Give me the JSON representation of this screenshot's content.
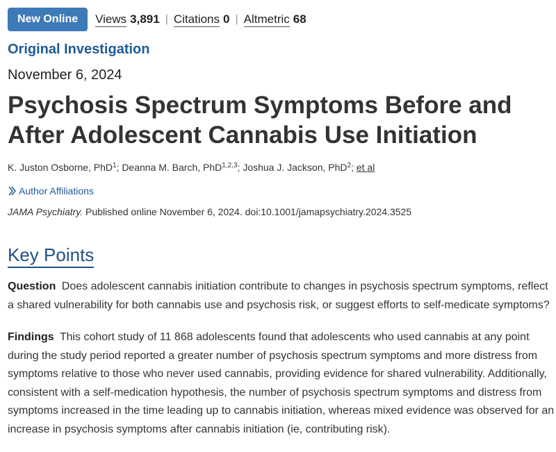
{
  "topbar": {
    "badge": "New Online",
    "views_label": "Views",
    "views_value": "3,891",
    "citations_label": "Citations",
    "citations_value": "0",
    "altmetric_label": "Altmetric",
    "altmetric_value": "68",
    "separator": "|"
  },
  "article": {
    "type": "Original Investigation",
    "date": "November 6, 2024",
    "title": "Psychosis Spectrum Symptoms Before and After Adolescent Cannabis Use Initiation",
    "authors": [
      {
        "name": "K. Juston Osborne, PhD",
        "sup": "1",
        "sep": "; "
      },
      {
        "name": "Deanna M. Barch, PhD",
        "sup": "1,2,3",
        "sep": "; "
      },
      {
        "name": "Joshua J. Jackson, PhD",
        "sup": "2",
        "sep": "; "
      }
    ],
    "et_al": "et al",
    "affiliations_label": "Author Affiliations",
    "citation_journal": "JAMA Psychiatry.",
    "citation_rest": " Published online November 6, 2024. doi:10.1001/jamapsychiatry.2024.3525"
  },
  "key_points": {
    "heading": "Key Points",
    "question_label": "Question",
    "question_text": "Does adolescent cannabis initiation contribute to changes in psychosis spectrum symptoms, reflect a shared vulnerability for both cannabis use and psychosis risk, or suggest efforts to self-medicate symptoms?",
    "findings_label": "Findings",
    "findings_text": "This cohort study of 11 868 adolescents found that adolescents who used cannabis at any point during the study period reported a greater number of psychosis spectrum symptoms and more distress from symptoms relative to those who never used cannabis, providing evidence for shared vulnerability. Additionally, consistent with a self-medication hypothesis, the number of psychosis spectrum symptoms and distress from symptoms increased in the time leading up to cannabis initiation, whereas mixed evidence was observed for an increase in psychosis symptoms after cannabis initiation (ie, contributing risk)."
  },
  "colors": {
    "badge_bg": "#3d7ab8",
    "link_blue": "#1f5a96",
    "heading_blue": "#1f4f86",
    "text": "#333333"
  }
}
